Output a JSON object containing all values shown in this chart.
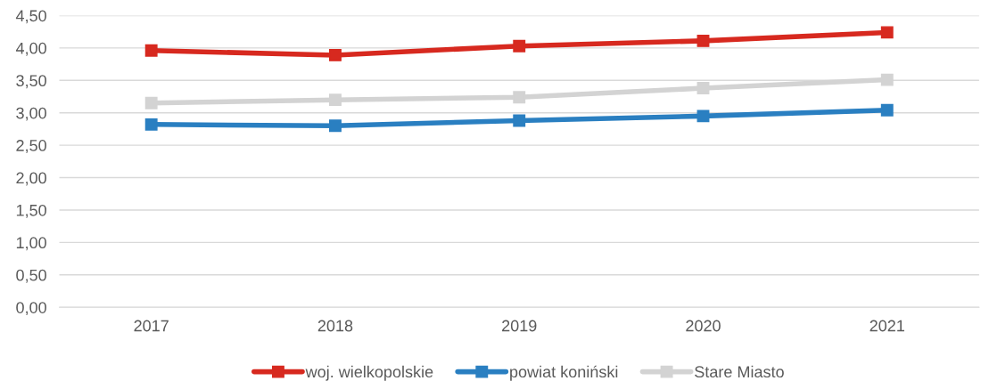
{
  "chart_data": {
    "type": "line",
    "categories": [
      "2017",
      "2018",
      "2019",
      "2020",
      "2021"
    ],
    "series": [
      {
        "name": "woj. wielkopolskie",
        "color": "#d7291f",
        "values": [
          3.96,
          3.89,
          4.03,
          4.11,
          4.24
        ]
      },
      {
        "name": "powiat koniński",
        "color": "#2a7fc1",
        "values": [
          2.82,
          2.8,
          2.88,
          2.95,
          3.04
        ]
      },
      {
        "name": "Stare Miasto",
        "color": "#d3d3d3",
        "values": [
          3.15,
          3.2,
          3.24,
          3.38,
          3.51
        ]
      }
    ],
    "ylim": [
      0,
      4.5
    ],
    "yticks": [
      {
        "value": 0,
        "label": "0,00"
      },
      {
        "value": 0.5,
        "label": "0,50"
      },
      {
        "value": 1,
        "label": "1,00"
      },
      {
        "value": 1.5,
        "label": "1,50"
      },
      {
        "value": 2,
        "label": "2,00"
      },
      {
        "value": 2.5,
        "label": "2,50"
      },
      {
        "value": 3,
        "label": "3,00"
      },
      {
        "value": 3.5,
        "label": "3,50"
      },
      {
        "value": 4,
        "label": "4,00"
      },
      {
        "value": 4.5,
        "label": "4,50"
      }
    ],
    "grid": "y",
    "legend": "bottom",
    "marker": "square",
    "line_style": "solid"
  }
}
